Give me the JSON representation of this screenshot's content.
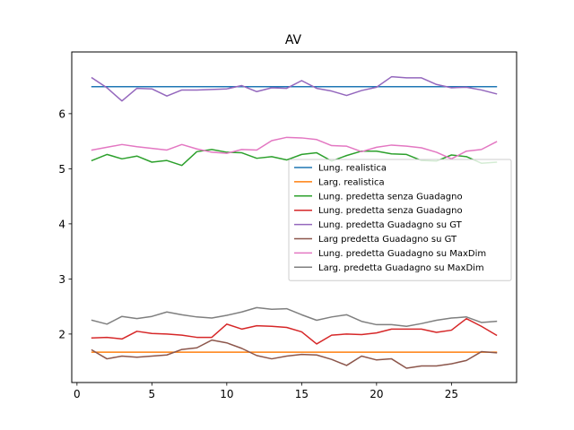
{
  "chart_data": {
    "type": "line",
    "title": "AV",
    "xlabel": "",
    "ylabel": "",
    "xlim": [
      -0.35,
      29.35
    ],
    "ylim": [
      1.12,
      7.12
    ],
    "xticks": [
      0,
      5,
      10,
      15,
      20,
      25
    ],
    "yticks": [
      2,
      3,
      4,
      5,
      6
    ],
    "grid": false,
    "legend_position": "center-right",
    "x": [
      1,
      2,
      3,
      4,
      5,
      6,
      7,
      8,
      9,
      10,
      11,
      12,
      13,
      14,
      15,
      16,
      17,
      18,
      19,
      20,
      21,
      22,
      23,
      24,
      25,
      26,
      27,
      28
    ],
    "series": [
      {
        "name": "Lung. realistica",
        "color": "#1f77b4",
        "values": [
          6.49,
          6.49,
          6.49,
          6.49,
          6.49,
          6.49,
          6.49,
          6.49,
          6.49,
          6.49,
          6.49,
          6.49,
          6.49,
          6.49,
          6.49,
          6.49,
          6.49,
          6.49,
          6.49,
          6.49,
          6.49,
          6.49,
          6.49,
          6.49,
          6.49,
          6.49,
          6.49,
          6.49
        ]
      },
      {
        "name": "Larg. realistica",
        "color": "#ff7f0e",
        "values": [
          1.67,
          1.67,
          1.67,
          1.67,
          1.67,
          1.67,
          1.67,
          1.67,
          1.67,
          1.67,
          1.67,
          1.67,
          1.67,
          1.67,
          1.67,
          1.67,
          1.67,
          1.67,
          1.67,
          1.67,
          1.67,
          1.67,
          1.67,
          1.67,
          1.67,
          1.67,
          1.67,
          1.67
        ]
      },
      {
        "name": "Lung. predetta senza Guadagno",
        "color": "#2ca02c",
        "values": [
          5.15,
          5.26,
          5.18,
          5.23,
          5.12,
          5.15,
          5.06,
          5.31,
          5.35,
          5.3,
          5.29,
          5.19,
          5.22,
          5.16,
          5.26,
          5.29,
          5.14,
          5.24,
          5.32,
          5.32,
          5.27,
          5.26,
          5.15,
          5.14,
          5.25,
          5.22,
          5.1,
          5.12
        ]
      },
      {
        "name": "Lung. predetta senza Guadagno",
        "color": "#d62728",
        "values": [
          1.93,
          1.94,
          1.91,
          2.05,
          2.01,
          2.0,
          1.98,
          1.94,
          1.94,
          2.18,
          2.09,
          2.15,
          2.14,
          2.12,
          2.04,
          1.82,
          1.98,
          2.0,
          1.99,
          2.02,
          2.09,
          2.09,
          2.09,
          2.03,
          2.07,
          2.28,
          2.14,
          1.98
        ]
      },
      {
        "name": "Lung. predetta Guadagno su GT",
        "color": "#9467bd",
        "values": [
          6.65,
          6.47,
          6.23,
          6.46,
          6.45,
          6.32,
          6.43,
          6.43,
          6.44,
          6.45,
          6.51,
          6.4,
          6.47,
          6.46,
          6.6,
          6.46,
          6.41,
          6.33,
          6.42,
          6.48,
          6.67,
          6.65,
          6.65,
          6.53,
          6.47,
          6.48,
          6.43,
          6.36
        ]
      },
      {
        "name": "Larg predetta Guadagno su GT",
        "color": "#8c564b",
        "values": [
          1.71,
          1.55,
          1.6,
          1.58,
          1.6,
          1.62,
          1.72,
          1.75,
          1.89,
          1.84,
          1.74,
          1.61,
          1.55,
          1.6,
          1.63,
          1.62,
          1.54,
          1.43,
          1.6,
          1.53,
          1.55,
          1.38,
          1.42,
          1.42,
          1.46,
          1.52,
          1.68,
          1.66
        ]
      },
      {
        "name": "Lung. predetta Guadagno su MaxDim",
        "color": "#e377c2",
        "values": [
          5.34,
          5.39,
          5.44,
          5.4,
          5.37,
          5.34,
          5.44,
          5.36,
          5.3,
          5.28,
          5.35,
          5.34,
          5.51,
          5.57,
          5.56,
          5.53,
          5.42,
          5.41,
          5.31,
          5.39,
          5.43,
          5.41,
          5.38,
          5.3,
          5.18,
          5.32,
          5.35,
          5.49
        ]
      },
      {
        "name": "Larg. predetta Guadagno su MaxDim",
        "color": "#7f7f7f",
        "values": [
          2.25,
          2.18,
          2.32,
          2.28,
          2.32,
          2.4,
          2.35,
          2.31,
          2.29,
          2.34,
          2.4,
          2.48,
          2.45,
          2.46,
          2.35,
          2.25,
          2.31,
          2.35,
          2.23,
          2.17,
          2.17,
          2.14,
          2.19,
          2.25,
          2.29,
          2.31,
          2.21,
          2.23
        ]
      }
    ]
  }
}
